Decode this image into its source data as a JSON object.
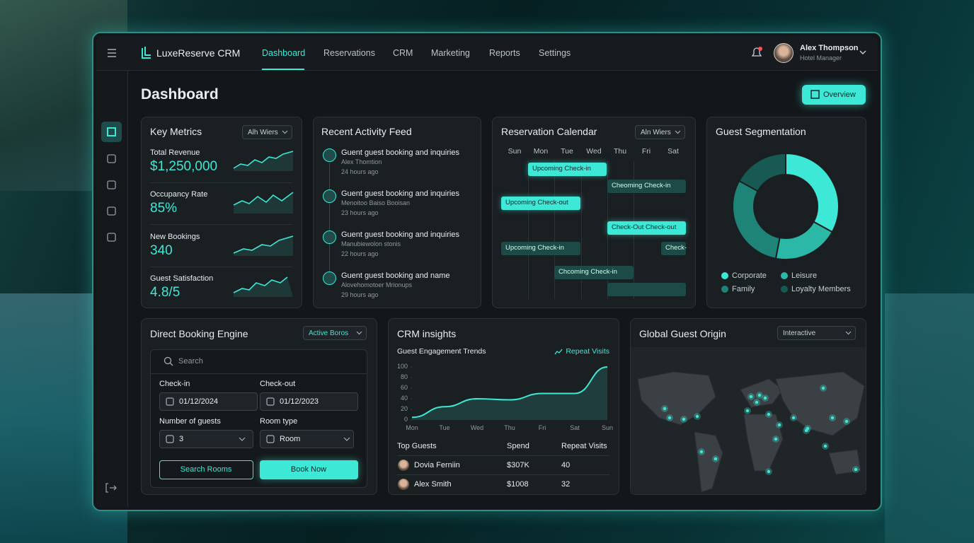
{
  "nav": {
    "brand": "LuxeReserve CRM",
    "items": [
      "Dashboard",
      "Reservations",
      "CRM",
      "Marketing",
      "Reports",
      "Settings"
    ],
    "user_name": "Alex Thompson",
    "user_role": "Hotel Manager"
  },
  "header": {
    "title": "Dashboard",
    "button": "Overview"
  },
  "key_metrics": {
    "title": "Key Metrics",
    "filter": "Alh Wiers",
    "metrics": [
      {
        "label": "Total Revenue",
        "value": "$1,250,000"
      },
      {
        "label": "Occupancy Rate",
        "value": "85%"
      },
      {
        "label": "New Bookings",
        "value": "340"
      },
      {
        "label": "Guest Satisfaction",
        "value": "4.8/5"
      }
    ]
  },
  "activity": {
    "title": "Recent Activity Feed",
    "items": [
      {
        "title": "Guent guest booking and inquiries",
        "sub": "Alex Thomtion",
        "time": "24 hours ago"
      },
      {
        "title": "Guent guest booking and inquiries",
        "sub": "Menoitoo Baiso Booisan",
        "time": "23 hours ago"
      },
      {
        "title": "Guent guest booking and inquiries",
        "sub": "Manubiewolon stonis",
        "time": "22 hours ago"
      },
      {
        "title": "Guent guest booking and name",
        "sub": "Alovehomotoer Mrionups",
        "time": "29 hours ago"
      }
    ]
  },
  "calendar": {
    "title": "Reservation Calendar",
    "filter": "Aln Wiers",
    "days": [
      "Sun",
      "Mon",
      "Tue",
      "Wed",
      "Thu",
      "Fri",
      "Sat"
    ],
    "events": [
      "Upcoming Check-in",
      "Cheoming Check-in",
      "Upcoming Check-out",
      "Check-Out Check-out",
      "Upcoming Check-in",
      "Check-",
      "Chcoming Check-in"
    ]
  },
  "segmentation": {
    "title": "Guest Segmentation",
    "chart": {
      "type": "pie",
      "categories": [
        "Corporate",
        "Leisure",
        "Family",
        "Loyalty Members"
      ],
      "values": [
        33,
        20,
        30,
        17
      ],
      "colors": [
        "#3ee8d6",
        "#2bb8a6",
        "#1f8478",
        "#175a54"
      ]
    }
  },
  "booking": {
    "title": "Direct Booking Engine",
    "filter": "Active Boros",
    "search": "Search",
    "checkin_label": "Check-in",
    "checkin_value": "01/12/2024",
    "checkout_label": "Check-out",
    "checkout_value": "01/12/2023",
    "guests_label": "Number of guests",
    "guests_value": "3",
    "room_label": "Room type",
    "room_value": "Room",
    "search_button": "Search Rooms",
    "book_button": "Book Now"
  },
  "crm": {
    "title": "CRM insights",
    "chart": {
      "type": "line",
      "title": "Guest Engagement Trends",
      "categories": [
        "Mon",
        "Tue",
        "Wed",
        "Thu",
        "Fri",
        "Sat",
        "Sun"
      ],
      "series": [
        {
          "name": "Repeat Visits",
          "color": "#3ee8d6",
          "values": [
            5,
            25,
            40,
            38,
            50,
            50,
            100
          ]
        }
      ],
      "ylim": [
        0,
        100
      ],
      "yticks": [
        0,
        20,
        40,
        60,
        80,
        100
      ]
    },
    "table": {
      "headers": [
        "Top Guests",
        "Spend",
        "Repeat Visits"
      ],
      "rows": [
        [
          "Dovia Ferniin",
          "$307K",
          40
        ],
        [
          "Alex Smith",
          "$1008",
          32
        ]
      ]
    }
  },
  "map": {
    "title": "Global Guest Origin",
    "filter": "Interactive"
  }
}
